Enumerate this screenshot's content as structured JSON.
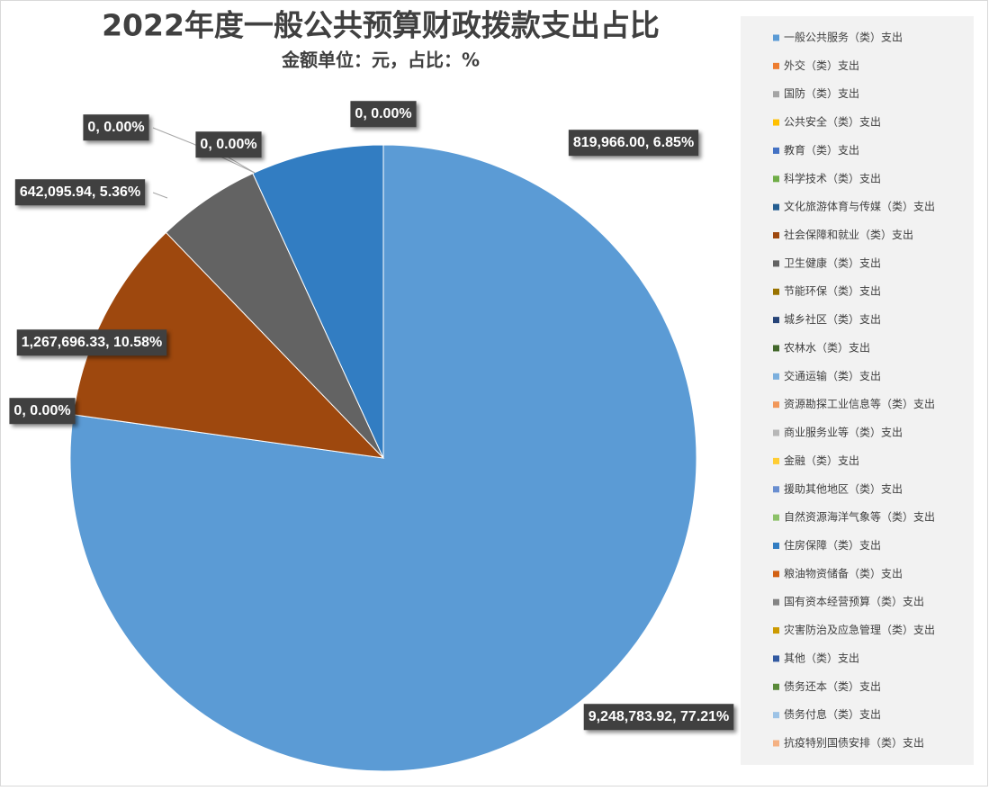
{
  "chart_data": {
    "type": "pie",
    "title": "2022年度一般公共预算财政拨款支出占比",
    "subtitle": "金额单位：元，占比：%",
    "categories": [
      "一般公共服务（类）支出",
      "外交（类）支出",
      "国防（类）支出",
      "公共安全（类）支出",
      "教育（类）支出",
      "科学技术（类）支出",
      "文化旅游体育与传媒（类）支出",
      "社会保障和就业（类）支出",
      "卫生健康（类）支出",
      "节能环保（类）支出",
      "城乡社区（类）支出",
      "农林水（类）支出",
      "交通运输（类）支出",
      "资源勘探工业信息等（类）支出",
      "商业服务业等（类）支出",
      "金融（类）支出",
      "援助其他地区（类）支出",
      "自然资源海洋气象等（类）支出",
      "住房保障（类）支出",
      "粮油物资储备（类）支出",
      "国有资本经营预算（类）支出",
      "灾害防治及应急管理（类）支出",
      "其他（类）支出",
      "债务还本（类）支出",
      "债务付息（类）支出",
      "抗疫特别国债安排（类）支出"
    ],
    "values": [
      9248783.92,
      0,
      0,
      0,
      0,
      0,
      0,
      1267696.33,
      642095.94,
      0,
      0,
      0,
      0,
      0,
      0,
      0,
      0,
      0,
      819966.0,
      0,
      0,
      0,
      0,
      0,
      0,
      0
    ],
    "value_labels": [
      "9,248,783.92, 77.21%",
      null,
      null,
      null,
      null,
      null,
      "0, 0.00%",
      "1,267,696.33, 10.58%",
      "642,095.94, 5.36%",
      "0, 0.00%",
      null,
      null,
      null,
      null,
      null,
      null,
      null,
      "0, 0.00%",
      "819,966.00, 6.85%",
      null,
      null,
      null,
      null,
      null,
      null,
      "0, 0.00%"
    ],
    "colors": [
      "#5b9bd5",
      "#ed7d31",
      "#a5a5a5",
      "#ffc000",
      "#4472c4",
      "#70ad47",
      "#255e91",
      "#9e480e",
      "#636363",
      "#997300",
      "#264478",
      "#43682b",
      "#7cafdd",
      "#f1975a",
      "#b7b7b7",
      "#ffcd33",
      "#698ed0",
      "#8cc168",
      "#327dc2",
      "#d26012",
      "#848484",
      "#cc9a00",
      "#335aa1",
      "#5a8a39",
      "#9dc3e6",
      "#f4b183"
    ],
    "legend": "right"
  }
}
